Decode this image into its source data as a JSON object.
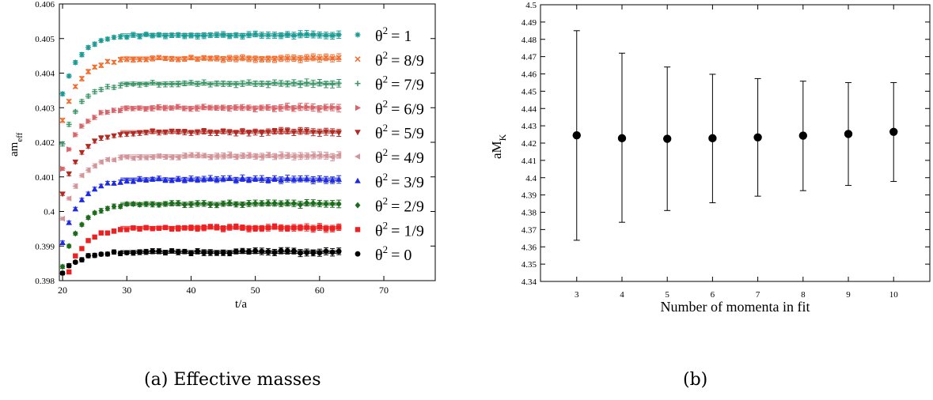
{
  "captions": {
    "a": "(a) Effective masses",
    "b": "(b)"
  },
  "chart_data": [
    {
      "type": "scatter",
      "xlabel": "t/a",
      "ylabel_main": "am",
      "ylabel_sub": "eff",
      "xlim": [
        19.5,
        78
      ],
      "ylim": [
        0.398,
        0.406
      ],
      "xticks": [
        "20",
        "30",
        "40",
        "50",
        "60",
        "70"
      ],
      "yticks": [
        "0.398",
        "0.399",
        "0.4",
        "0.401",
        "0.402",
        "0.403",
        "0.404",
        "0.405",
        "0.406"
      ],
      "x_range": [
        20,
        63
      ],
      "fit_start": 29,
      "series": [
        {
          "legend_sym": "θ",
          "legend_exp": "2",
          "legend_val": "= 1",
          "marker": "star",
          "color": "#1a9a94",
          "plateau": 0.4051,
          "start": 0.4034
        },
        {
          "legend_sym": "θ",
          "legend_exp": "2",
          "legend_val": "= 8/9",
          "marker": "x",
          "color": "#f26b2a",
          "plateau": 0.40443,
          "start": 0.40265
        },
        {
          "legend_sym": "θ",
          "legend_exp": "2",
          "legend_val": "= 7/9",
          "marker": "plus",
          "color": "#3a9466",
          "plateau": 0.4037,
          "start": 0.40195
        },
        {
          "legend_sym": "θ",
          "legend_exp": "2",
          "legend_val": "= 6/9",
          "marker": "tri-right",
          "color": "#d9646a",
          "plateau": 0.403,
          "start": 0.40125
        },
        {
          "legend_sym": "θ",
          "legend_exp": "2",
          "legend_val": "= 5/9",
          "marker": "tri-down",
          "color": "#b22a22",
          "plateau": 0.4023,
          "start": 0.4005
        },
        {
          "legend_sym": "θ",
          "legend_exp": "2",
          "legend_val": "= 4/9",
          "marker": "tri-left",
          "color": "#d4959a",
          "plateau": 0.4016,
          "start": 0.3998
        },
        {
          "legend_sym": "θ",
          "legend_exp": "2",
          "legend_val": "= 3/9",
          "marker": "tri-up",
          "color": "#1f2be0",
          "plateau": 0.40093,
          "start": 0.3991
        },
        {
          "legend_sym": "θ",
          "legend_exp": "2",
          "legend_val": "= 2/9",
          "marker": "diamond",
          "color": "#1d6b1d",
          "plateau": 0.40022,
          "start": 0.3984
        },
        {
          "legend_sym": "θ",
          "legend_exp": "2",
          "legend_val": "= 1/9",
          "marker": "square",
          "color": "#ef2020",
          "plateau": 0.39953,
          "start": 0.3977
        },
        {
          "legend_sym": "θ",
          "legend_exp": "2",
          "legend_val": "= 0",
          "marker": "circle",
          "color": "#000000",
          "plateau": 0.39883,
          "start": 0.3982
        }
      ]
    },
    {
      "type": "scatter",
      "xlabel": "Number of momenta in fit",
      "ylabel_main": "aM",
      "ylabel_sub": "K",
      "xlim": [
        2.2,
        10.8
      ],
      "ylim": [
        4.34,
        4.5
      ],
      "xticks": [
        "3",
        "4",
        "5",
        "6",
        "7",
        "8",
        "9",
        "10"
      ],
      "yticks": [
        "4.34",
        "4.35",
        "4.36",
        "4.37",
        "4.38",
        "4.39",
        "4.4",
        "4.41",
        "4.42",
        "4.43",
        "4.44",
        "4.45",
        "4.46",
        "4.47",
        "4.48",
        "4.49",
        "4.5"
      ],
      "x": [
        3,
        4,
        5,
        6,
        7,
        8,
        9,
        10
      ],
      "y": [
        4.4245,
        4.4228,
        4.4225,
        4.4228,
        4.4233,
        4.4243,
        4.4253,
        4.4265
      ],
      "err_hi": [
        4.485,
        4.472,
        4.464,
        4.4598,
        4.4573,
        4.4558,
        4.455,
        4.455
      ],
      "err_lo": [
        4.3638,
        4.3742,
        4.381,
        4.3855,
        4.3893,
        4.3925,
        4.3955,
        4.3978
      ]
    }
  ]
}
